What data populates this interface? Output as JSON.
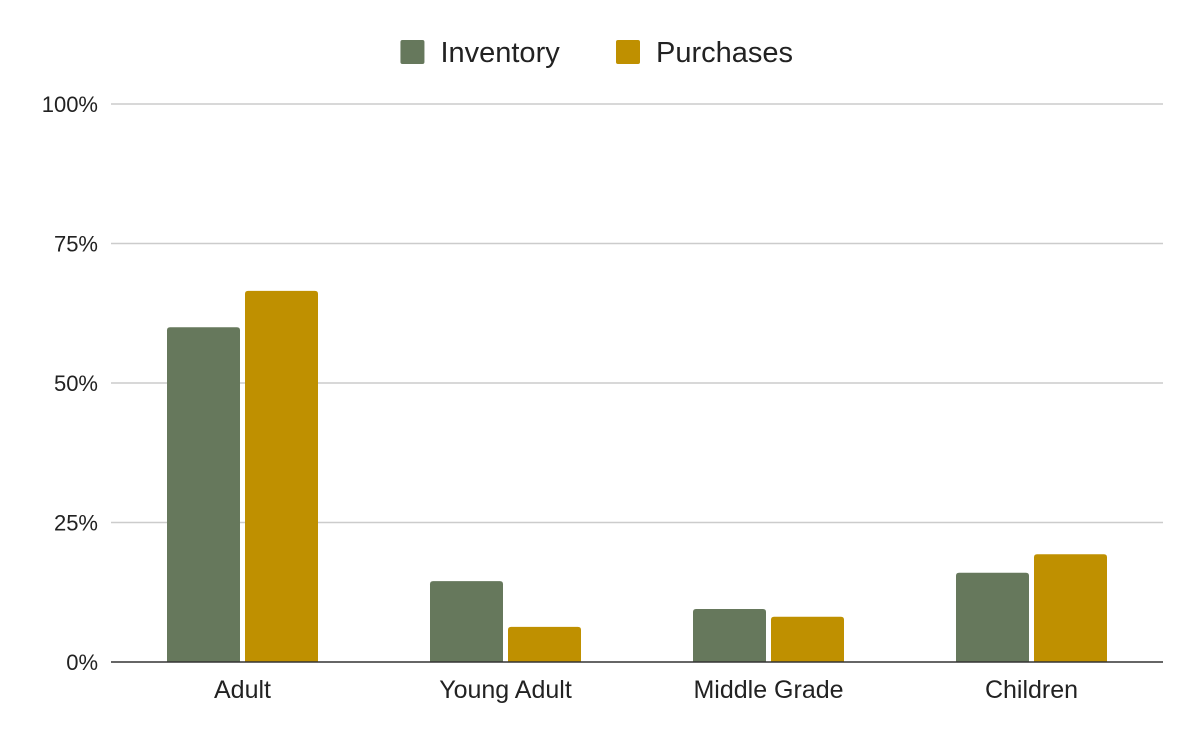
{
  "chart_data": {
    "type": "bar",
    "title": "",
    "xlabel": "",
    "ylabel": "",
    "categories": [
      "Adult",
      "Young Adult",
      "Middle Grade",
      "Children"
    ],
    "series": [
      {
        "name": "Inventory",
        "color": "#66785c",
        "values": [
          60,
          14.5,
          9.5,
          16
        ]
      },
      {
        "name": "Purchases",
        "color": "#bf9000",
        "values": [
          66.5,
          6.3,
          8.1,
          19.3
        ]
      }
    ],
    "ylim": [
      0,
      100
    ],
    "yticks": [
      0,
      25,
      50,
      75,
      100
    ],
    "ytick_labels": [
      "0%",
      "25%",
      "50%",
      "75%",
      "100%"
    ],
    "grid": true,
    "legend_position": "top-center"
  }
}
